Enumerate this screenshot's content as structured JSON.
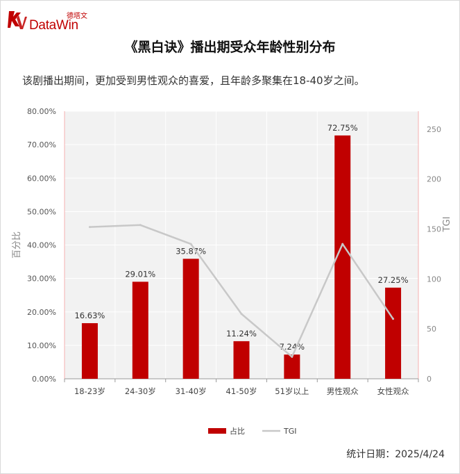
{
  "brand": {
    "name_cn": "德塔文",
    "name_en": "DataWin",
    "color": "#c00000"
  },
  "title": "《黑白诀》播出期受众年龄性别分布",
  "subtitle": "该剧播出期间，更加受到男性观众的喜爱，且年龄多聚集在18-40岁之间。",
  "footer": {
    "date_text": "统计日期：2025/4/24"
  },
  "chart_data": {
    "type": "bar",
    "categories": [
      "18-23岁",
      "24-30岁",
      "31-40岁",
      "41-50岁",
      "51岁以上",
      "男性观众",
      "女性观众"
    ],
    "series": [
      {
        "name": "占比",
        "type": "bar",
        "axis": "left",
        "values": [
          16.63,
          29.01,
          35.87,
          11.24,
          7.24,
          72.75,
          27.25
        ],
        "labels": [
          "16.63%",
          "29.01%",
          "35.87%",
          "11.24%",
          "7.24%",
          "72.75%",
          "27.25%"
        ],
        "color": "#c00000"
      },
      {
        "name": "TGI",
        "type": "line",
        "axis": "right",
        "values": [
          152,
          154,
          135,
          65,
          22,
          135,
          60
        ],
        "color": "#c8c8c8"
      }
    ],
    "y_left": {
      "label": "百分比",
      "lim": [
        0,
        80
      ],
      "ticks": [
        "0.00%",
        "10.00%",
        "20.00%",
        "30.00%",
        "40.00%",
        "50.00%",
        "60.00%",
        "70.00%",
        "80.00%"
      ]
    },
    "y_right": {
      "label": "TGI",
      "lim": [
        0,
        268
      ],
      "ticks": [
        "0",
        "50",
        "100",
        "150",
        "200",
        "250"
      ],
      "tick_values": [
        0,
        50,
        100,
        150,
        200,
        250
      ]
    },
    "grid": true,
    "legend_position": "bottom-center"
  }
}
